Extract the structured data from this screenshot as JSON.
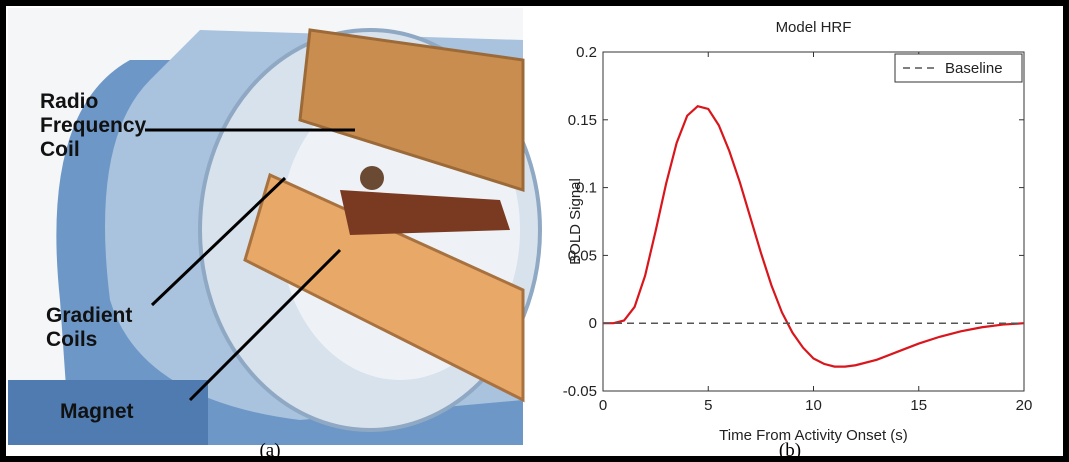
{
  "figure": {
    "captions": [
      "(a)",
      "(b)"
    ],
    "illustration_labels": [
      [
        "Radio",
        "Frequency",
        "Coil"
      ],
      [
        "Gradient",
        "Coils"
      ],
      [
        "Magnet"
      ]
    ]
  },
  "chart_data": {
    "type": "line",
    "title": "Model HRF",
    "xlabel": "Time From Activity Onset (s)",
    "ylabel": "BOLD Signal",
    "xlim": [
      0,
      20
    ],
    "ylim": [
      -0.05,
      0.2
    ],
    "xticks": [
      0,
      5,
      10,
      15,
      20
    ],
    "yticks": [
      -0.05,
      0,
      0.05,
      0.1,
      0.15,
      0.2
    ],
    "grid": false,
    "legend": "upper right",
    "series": [
      {
        "color": "#d9161c",
        "dash": false,
        "x": [
          0,
          0.5,
          1,
          1.5,
          2,
          2.5,
          3,
          3.5,
          4,
          4.5,
          5,
          5.5,
          6,
          6.5,
          7,
          7.5,
          8,
          8.5,
          9,
          9.5,
          10,
          10.5,
          11,
          11.5,
          12,
          13,
          14,
          15,
          16,
          17,
          18,
          19,
          20
        ],
        "values": [
          0,
          0,
          0.002,
          0.012,
          0.035,
          0.068,
          0.103,
          0.133,
          0.153,
          0.16,
          0.158,
          0.146,
          0.127,
          0.104,
          0.078,
          0.052,
          0.028,
          0.008,
          -0.007,
          -0.018,
          -0.026,
          -0.03,
          -0.032,
          -0.032,
          -0.031,
          -0.027,
          -0.021,
          -0.015,
          -0.01,
          -0.006,
          -0.003,
          -0.001,
          0
        ]
      },
      {
        "name": "Baseline",
        "color": "#555555",
        "dash": true,
        "x": [
          0,
          20
        ],
        "values": [
          0,
          0
        ]
      }
    ]
  }
}
